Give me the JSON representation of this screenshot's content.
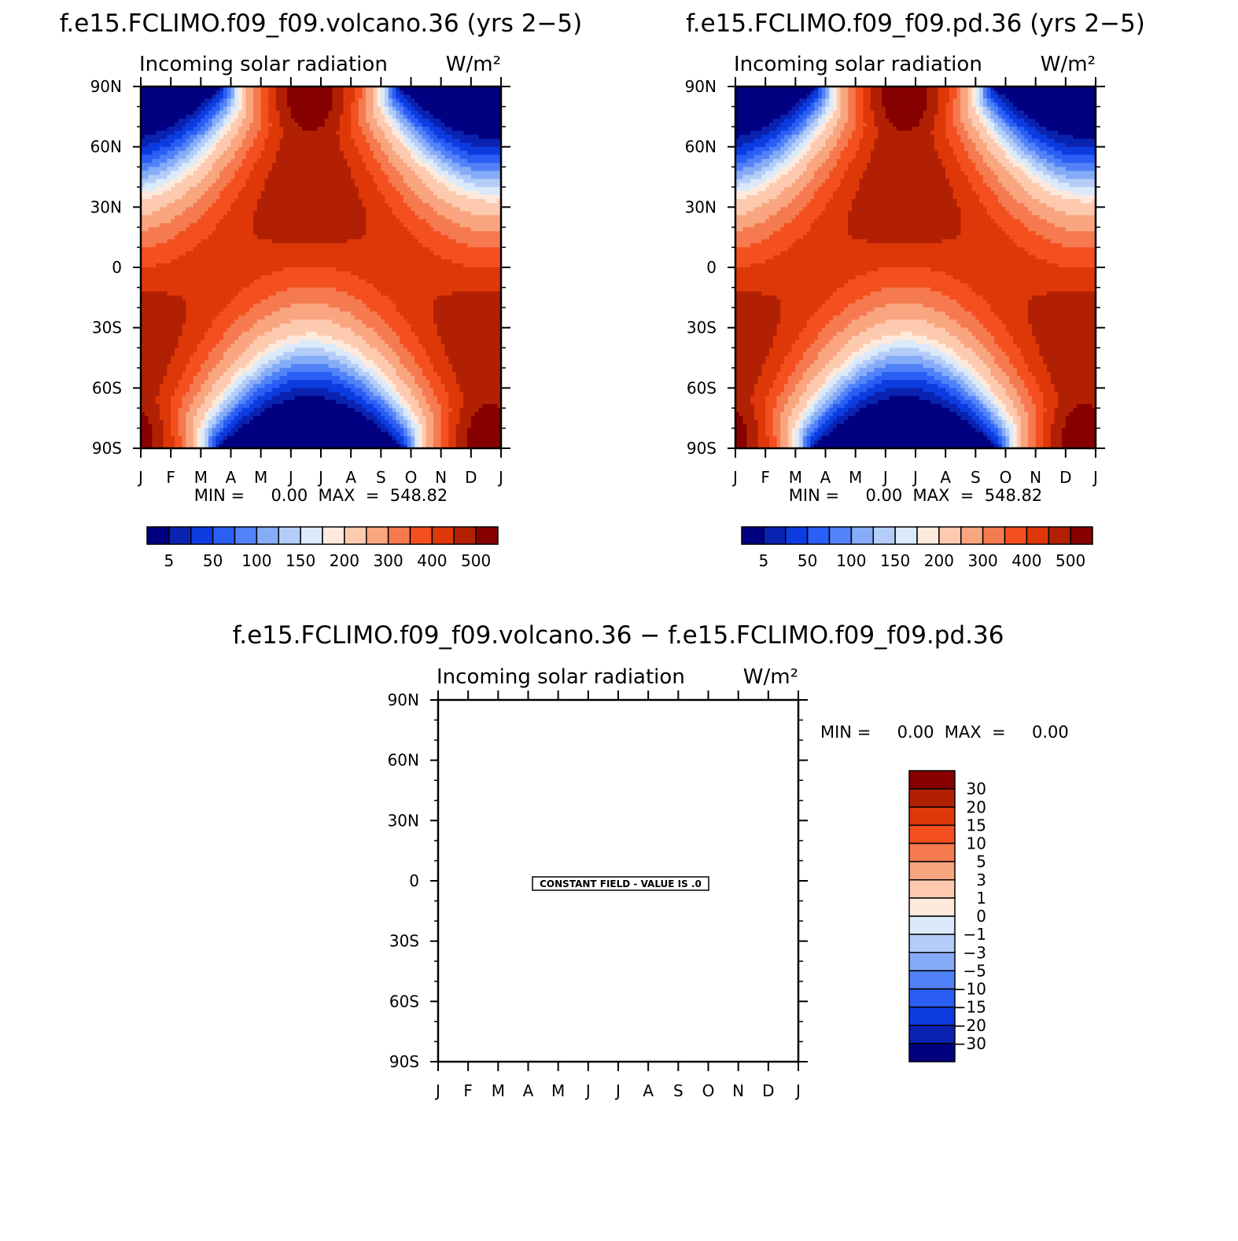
{
  "panels": [
    {
      "title": "f.e15.FCLIMO.f09_f09.volcano.36 (yrs 2−5)",
      "field_label": "Incoming solar radiation",
      "units": "W/m²",
      "stats": "MIN =     0.00  MAX  =  548.82"
    },
    {
      "title": "f.e15.FCLIMO.f09_f09.pd.36 (yrs 2−5)",
      "field_label": "Incoming solar radiation",
      "units": "W/m²",
      "stats": "MIN =     0.00  MAX  =  548.82"
    },
    {
      "title": "f.e15.FCLIMO.f09_f09.volcano.36 − f.e15.FCLIMO.f09_f09.pd.36",
      "field_label": "Incoming solar radiation",
      "units": "W/m²",
      "stats": "MIN =     0.00  MAX  =     0.00",
      "constant_field_label": "CONSTANT FIELD - VALUE IS .0"
    }
  ],
  "chart_data": [
    {
      "type": "heatmap",
      "title": "f.e15.FCLIMO.f09_f09.volcano.36 (yrs 2−5)",
      "subtitle": "Incoming solar radiation",
      "units": "W/m²",
      "x_ticks": [
        "J",
        "F",
        "M",
        "A",
        "M",
        "J",
        "J",
        "A",
        "S",
        "O",
        "N",
        "D",
        "J"
      ],
      "y_ticks": [
        "90N",
        "60N",
        "30N",
        "0",
        "30S",
        "60S",
        "90S"
      ],
      "ylim": [
        -90,
        90
      ],
      "min": 0.0,
      "max": 548.82,
      "levels": [
        5,
        25,
        50,
        75,
        100,
        125,
        150,
        175,
        200,
        250,
        300,
        350,
        400,
        450,
        500
      ],
      "level_labels": [
        "5",
        "50",
        "100",
        "150",
        "200",
        "300",
        "400",
        "500"
      ],
      "colors": [
        "#000080",
        "#0a22b0",
        "#0c3ce0",
        "#2a5ef4",
        "#5282f8",
        "#86acf8",
        "#b4cdf8",
        "#daeafa",
        "#feeadc",
        "#fdcab0",
        "#f9a680",
        "#f67a50",
        "#f4501f",
        "#de3808",
        "#b22004",
        "#860000"
      ]
    },
    {
      "type": "heatmap",
      "title": "f.e15.FCLIMO.f09_f09.pd.36 (yrs 2−5)",
      "subtitle": "Incoming solar radiation",
      "units": "W/m²",
      "x_ticks": [
        "J",
        "F",
        "M",
        "A",
        "M",
        "J",
        "J",
        "A",
        "S",
        "O",
        "N",
        "D",
        "J"
      ],
      "y_ticks": [
        "90N",
        "60N",
        "30N",
        "0",
        "30S",
        "60S",
        "90S"
      ],
      "ylim": [
        -90,
        90
      ],
      "min": 0.0,
      "max": 548.82,
      "levels": [
        5,
        25,
        50,
        75,
        100,
        125,
        150,
        175,
        200,
        250,
        300,
        350,
        400,
        450,
        500
      ],
      "level_labels": [
        "5",
        "50",
        "100",
        "150",
        "200",
        "300",
        "400",
        "500"
      ],
      "colors": [
        "#000080",
        "#0a22b0",
        "#0c3ce0",
        "#2a5ef4",
        "#5282f8",
        "#86acf8",
        "#b4cdf8",
        "#daeafa",
        "#feeadc",
        "#fdcab0",
        "#f9a680",
        "#f67a50",
        "#f4501f",
        "#de3808",
        "#b22004",
        "#860000"
      ]
    },
    {
      "type": "heatmap",
      "title": "f.e15.FCLIMO.f09_f09.volcano.36 − f.e15.FCLIMO.f09_f09.pd.36",
      "subtitle": "Incoming solar radiation",
      "units": "W/m²",
      "x_ticks": [
        "J",
        "F",
        "M",
        "A",
        "M",
        "J",
        "J",
        "A",
        "S",
        "O",
        "N",
        "D",
        "J"
      ],
      "y_ticks": [
        "90N",
        "60N",
        "30N",
        "0",
        "30S",
        "60S",
        "90S"
      ],
      "ylim": [
        -90,
        90
      ],
      "min": 0.0,
      "max": 0.0,
      "constant_value": 0.0,
      "levels": [
        -30,
        -20,
        -15,
        -10,
        -5,
        -3,
        -1,
        0,
        1,
        3,
        5,
        10,
        15,
        20,
        30
      ],
      "level_labels": [
        "30",
        "20",
        "15",
        "10",
        "5",
        "3",
        "1",
        "0",
        "−1",
        "−3",
        "−5",
        "−10",
        "−15",
        "−20",
        "−30"
      ],
      "colors": [
        "#860000",
        "#b22004",
        "#de3808",
        "#f4501f",
        "#f67a50",
        "#f9a680",
        "#fdcab0",
        "#feeadc",
        "#daeafa",
        "#b4cdf8",
        "#86acf8",
        "#5282f8",
        "#2a5ef4",
        "#0c3ce0",
        "#0a22b0",
        "#000080"
      ]
    }
  ]
}
